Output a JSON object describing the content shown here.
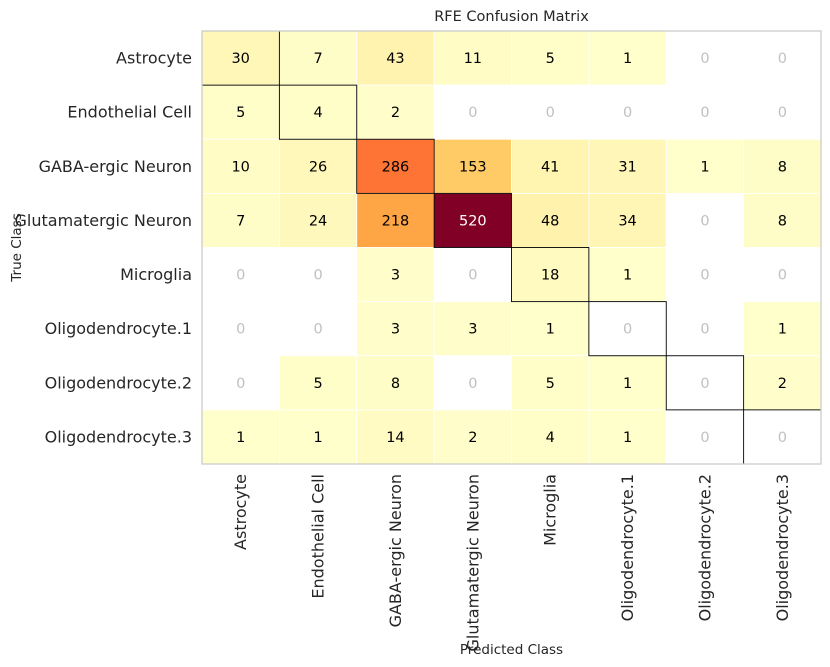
{
  "chart_data": {
    "type": "heatmap",
    "title": "RFE Confusion Matrix",
    "xlabel": "Predicted Class",
    "ylabel": "True Class",
    "row_labels": [
      "Astrocyte",
      "Endothelial Cell",
      "GABA-ergic Neuron",
      "Glutamatergic Neuron",
      "Microglia",
      "Oligodendrocyte.1",
      "Oligodendrocyte.2",
      "Oligodendrocyte.3"
    ],
    "col_labels": [
      "Astrocyte",
      "Endothelial Cell",
      "GABA-ergic Neuron",
      "Glutamatergic Neuron",
      "Microglia",
      "Oligodendrocyte.1",
      "Oligodendrocyte.2",
      "Oligodendrocyte.3"
    ],
    "values": [
      [
        30,
        7,
        43,
        11,
        5,
        1,
        0,
        0
      ],
      [
        5,
        4,
        2,
        0,
        0,
        0,
        0,
        0
      ],
      [
        10,
        26,
        286,
        153,
        41,
        31,
        1,
        8
      ],
      [
        7,
        24,
        218,
        520,
        48,
        34,
        0,
        8
      ],
      [
        0,
        0,
        3,
        0,
        18,
        1,
        0,
        0
      ],
      [
        0,
        0,
        3,
        3,
        1,
        0,
        0,
        1
      ],
      [
        0,
        5,
        8,
        0,
        5,
        1,
        0,
        2
      ],
      [
        1,
        1,
        14,
        2,
        4,
        1,
        0,
        0
      ]
    ],
    "colormap": "YlOrRd",
    "zero_cell_color": "#ffffff",
    "zero_text_color": "#c0c0c0",
    "text_color": "#000000",
    "max_text_color": "#ffffff",
    "diagonal_outline": true
  }
}
